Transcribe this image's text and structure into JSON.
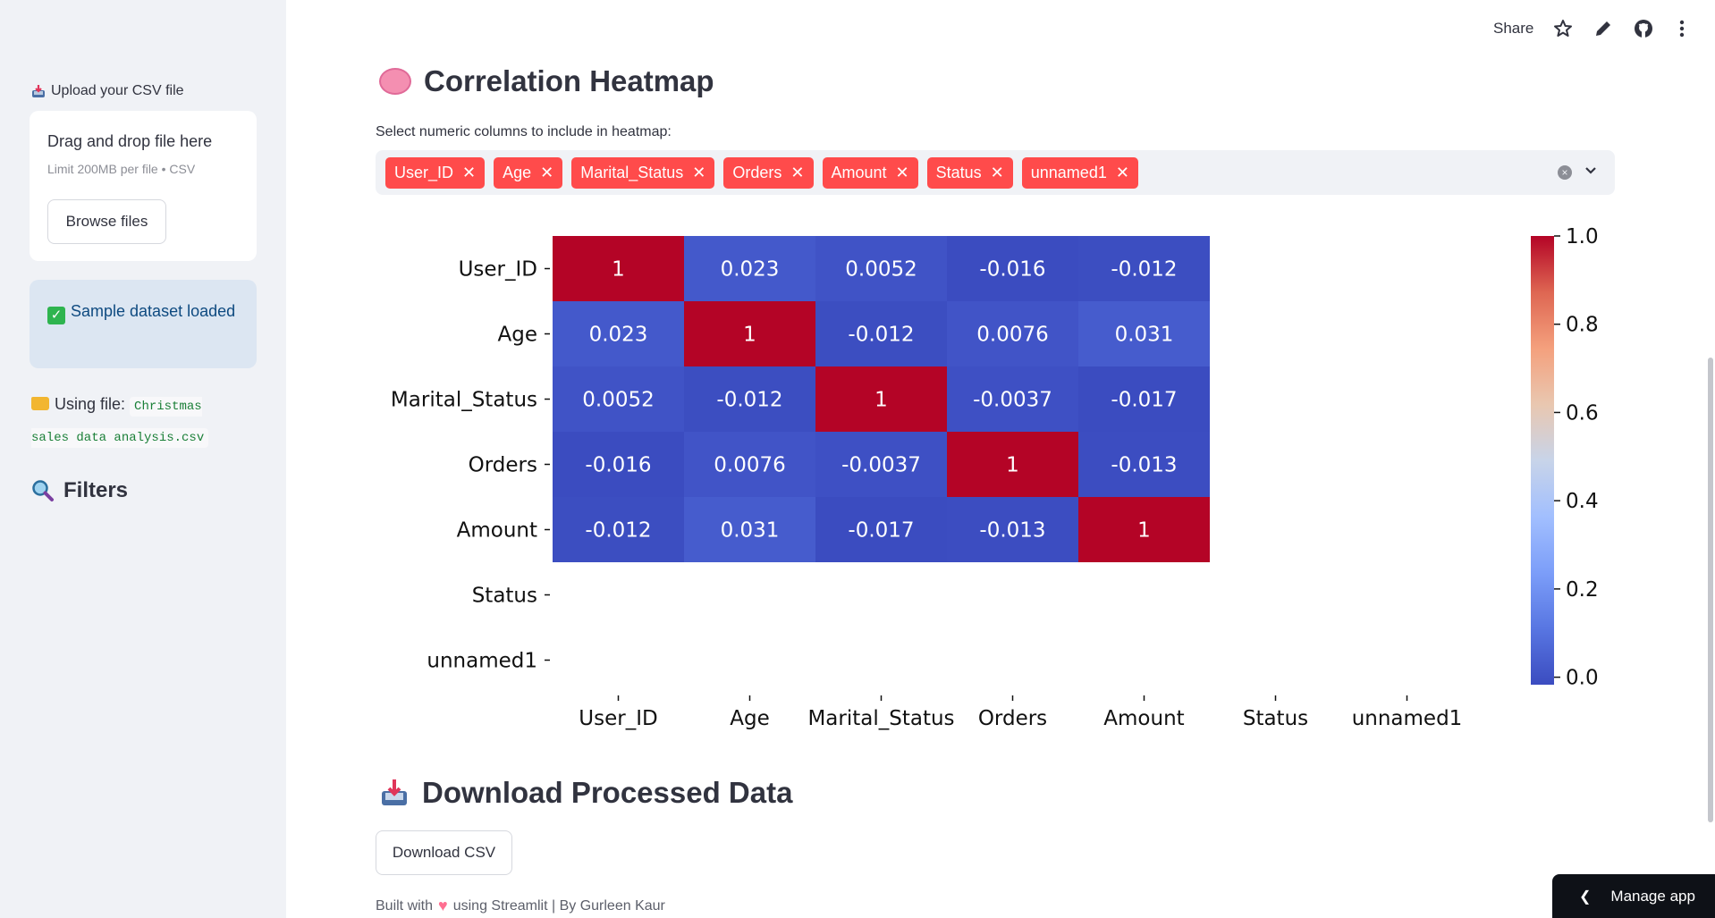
{
  "sidebar": {
    "upload_label": "Upload your CSV file",
    "dropzone_title": "Drag and drop file here",
    "dropzone_limit": "Limit 200MB per file • CSV",
    "browse_button": "Browse files",
    "success_message": "Sample dataset loaded",
    "using_file_label": "Using file:",
    "file_name": "Christmas sales data analysis.csv",
    "filters_title": "Filters"
  },
  "topbar": {
    "share_label": "Share"
  },
  "main": {
    "title": "Correlation Heatmap",
    "select_label": "Select numeric columns to include in heatmap:",
    "selected_tags": [
      "User_ID",
      "Age",
      "Marital_Status",
      "Orders",
      "Amount",
      "Status",
      "unnamed1"
    ],
    "download_title": "Download Processed Data",
    "download_button": "Download CSV",
    "footer_prefix": "Built with",
    "footer_suffix": "using Streamlit | By Gurleen Kaur",
    "manage_app": "Manage app"
  },
  "colors": {
    "accent": "#ff4b4b",
    "sidebar_bg": "#f0f2f6",
    "info_bg": "#dce6f2",
    "text": "#31333f"
  },
  "chart_data": {
    "type": "heatmap",
    "title": "",
    "xlabel": "",
    "ylabel": "",
    "row_labels": [
      "User_ID",
      "Age",
      "Marital_Status",
      "Orders",
      "Amount",
      "Status",
      "unnamed1"
    ],
    "col_labels": [
      "User_ID",
      "Age",
      "Marital_Status",
      "Orders",
      "Amount",
      "Status",
      "unnamed1"
    ],
    "values": [
      [
        1,
        0.023,
        0.0052,
        -0.016,
        -0.012,
        null,
        null
      ],
      [
        0.023,
        1,
        -0.012,
        0.0076,
        0.031,
        null,
        null
      ],
      [
        0.0052,
        -0.012,
        1,
        -0.0037,
        -0.017,
        null,
        null
      ],
      [
        -0.016,
        0.0076,
        -0.0037,
        1,
        -0.013,
        null,
        null
      ],
      [
        -0.012,
        0.031,
        -0.017,
        -0.013,
        1,
        null,
        null
      ],
      [
        null,
        null,
        null,
        null,
        null,
        null,
        null
      ],
      [
        null,
        null,
        null,
        null,
        null,
        null,
        null
      ]
    ],
    "value_labels": [
      [
        "1",
        "0.023",
        "0.0052",
        "-0.016",
        "-0.012",
        "",
        ""
      ],
      [
        "0.023",
        "1",
        "-0.012",
        "0.0076",
        "0.031",
        "",
        ""
      ],
      [
        "0.0052",
        "-0.012",
        "1",
        "-0.0037",
        "-0.017",
        "",
        ""
      ],
      [
        "-0.016",
        "0.0076",
        "-0.0037",
        "1",
        "-0.013",
        "",
        ""
      ],
      [
        "-0.012",
        "0.031",
        "-0.017",
        "-0.013",
        "1",
        "",
        ""
      ],
      [
        "",
        "",
        "",
        "",
        "",
        "",
        ""
      ],
      [
        "",
        "",
        "",
        "",
        "",
        "",
        ""
      ]
    ],
    "colorbar": {
      "range": [
        -0.017,
        1.0
      ],
      "ticks": [
        0.0,
        0.2,
        0.4,
        0.6,
        0.8,
        1.0
      ],
      "tick_labels": [
        "0.0",
        "0.2",
        "0.4",
        "0.6",
        "0.8",
        "1.0"
      ],
      "colormap": "coolwarm"
    },
    "grid": false
  }
}
